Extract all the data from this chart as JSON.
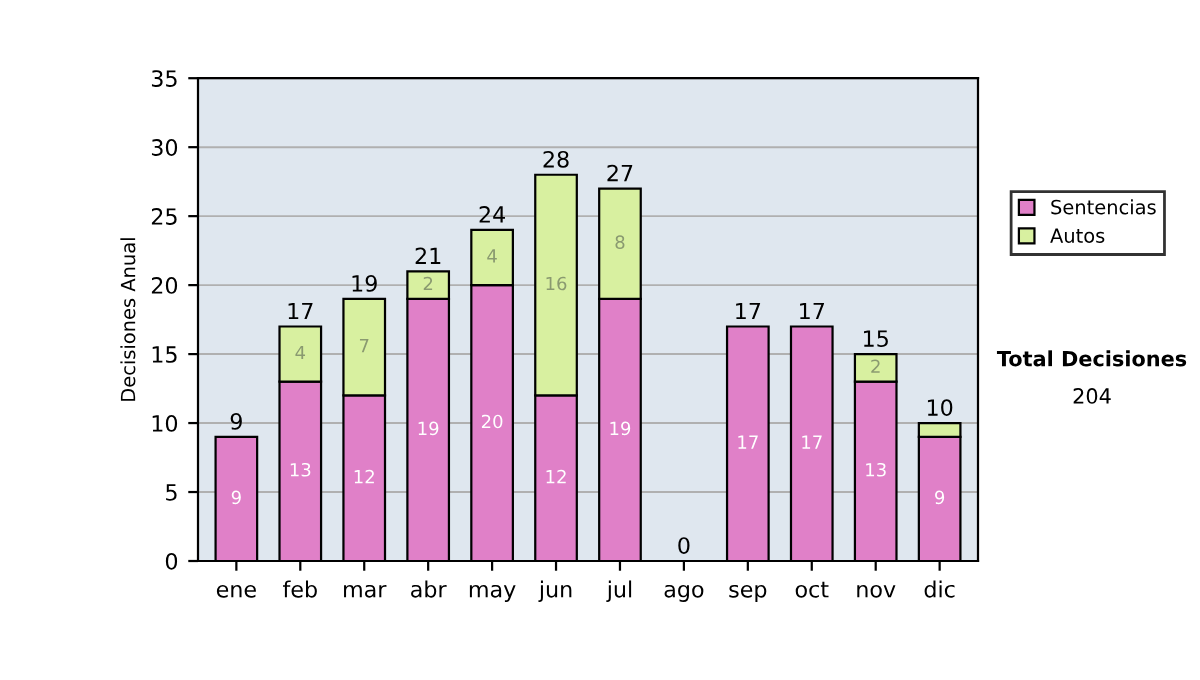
{
  "chart_data": {
    "type": "bar",
    "stacked": true,
    "ylabel": "Decisiones Anual",
    "categories": [
      "ene",
      "feb",
      "mar",
      "abr",
      "may",
      "jun",
      "jul",
      "ago",
      "sep",
      "oct",
      "nov",
      "dic"
    ],
    "series": [
      {
        "name": "Sentencias",
        "color": "#e080c8",
        "values": [
          9,
          13,
          12,
          19,
          20,
          12,
          19,
          0,
          17,
          17,
          13,
          9
        ],
        "value_labels": [
          "9",
          "13",
          "12",
          "19",
          "20",
          "12",
          "19",
          null,
          "17",
          "17",
          "13",
          "9"
        ]
      },
      {
        "name": "Autos",
        "color": "#d8f0a0",
        "values": [
          0,
          4,
          7,
          2,
          4,
          16,
          8,
          0,
          0,
          0,
          2,
          1
        ],
        "value_labels": [
          null,
          "4",
          "7",
          "2",
          "4",
          "16",
          "8",
          null,
          null,
          null,
          "2",
          null
        ]
      }
    ],
    "totals": [
      "9",
      "17",
      "19",
      "21",
      "24",
      "28",
      "27",
      "0",
      "17",
      "17",
      "15",
      "10"
    ],
    "ylim": [
      0,
      35
    ],
    "yticks": [
      0,
      5,
      10,
      15,
      20,
      25,
      30,
      35
    ],
    "grid": "y",
    "legend": "right",
    "annotations": [
      "Total Decisiones",
      "204"
    ]
  }
}
